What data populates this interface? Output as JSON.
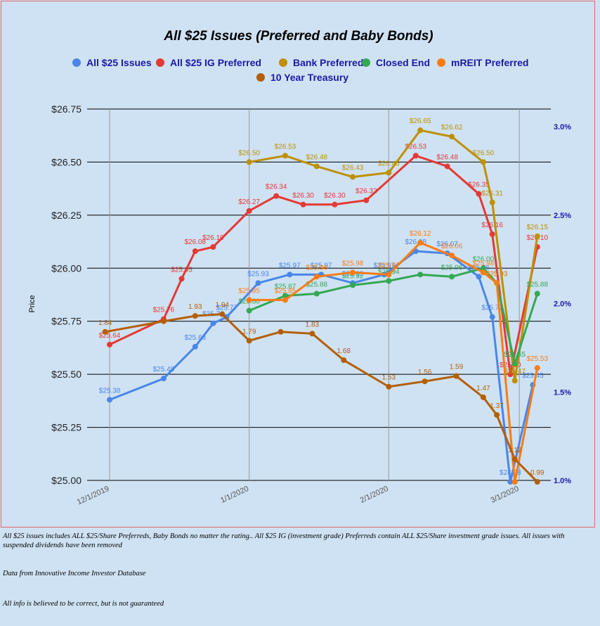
{
  "chart_data": {
    "type": "line",
    "title": "All $25 Issues (Preferred and Baby Bonds)",
    "ylabel": "Price",
    "ylim": [
      25.0,
      26.75
    ],
    "yticks": [
      "$25.00",
      "$25.25",
      "$25.50",
      "$25.75",
      "$26.00",
      "$26.25",
      "$26.50",
      "$26.75"
    ],
    "y2lim": [
      1.0,
      3.1
    ],
    "y2ticks": [
      "1.0%",
      "1.5%",
      "2.0%",
      "2.5%",
      "3.0%"
    ],
    "xticks": [
      "12/1/2019",
      "1/1/2020",
      "2/1/2020",
      "3/1/2020"
    ],
    "legend": "top",
    "grid": true,
    "series": [
      {
        "name": "All $25 Issues",
        "color": "#4a86e8",
        "axis": "left",
        "x": [
          "2019-12-01",
          "2019-12-13",
          "2019-12-20",
          "2019-12-24",
          "2019-12-27",
          "2020-01-03",
          "2020-01-10",
          "2020-01-17",
          "2020-01-24",
          "2020-01-31",
          "2020-02-07",
          "2020-02-14",
          "2020-02-21",
          "2020-02-24",
          "2020-02-28",
          "2020-03-04"
        ],
        "values": [
          25.38,
          25.48,
          25.63,
          25.74,
          25.77,
          25.93,
          25.97,
          25.97,
          25.93,
          25.97,
          26.08,
          26.07,
          25.96,
          25.77,
          24.98,
          25.45
        ],
        "labels": [
          "$25.38",
          "$25.48",
          "$25.63",
          "$25.74",
          "$25.77",
          "$25.93",
          "$25.97",
          "$25.97",
          "$25.93",
          "$25.97",
          "$26.08",
          "$26.07",
          "$25.96",
          "$25.77",
          "$24.98",
          "$25.45"
        ]
      },
      {
        "name": "All $25 IG Preferred",
        "color": "#e53935",
        "axis": "left",
        "x": [
          "2019-12-01",
          "2019-12-13",
          "2019-12-17",
          "2019-12-20",
          "2019-12-24",
          "2020-01-01",
          "2020-01-07",
          "2020-01-13",
          "2020-01-20",
          "2020-01-27",
          "2020-02-07",
          "2020-02-14",
          "2020-02-21",
          "2020-02-24",
          "2020-02-28",
          "2020-03-05"
        ],
        "values": [
          25.64,
          25.76,
          25.95,
          26.08,
          26.1,
          26.27,
          26.34,
          26.3,
          26.3,
          26.32,
          26.53,
          26.48,
          26.35,
          26.16,
          25.5,
          26.1
        ],
        "labels": [
          "$25.64",
          "$25.76",
          "$25.95",
          "$26.08",
          "$26.10",
          "$26.27",
          "$26.34",
          "$26.30",
          "$26.30",
          "$26.32",
          "$26.53",
          "$26.48",
          "$26.35",
          "$26.16",
          "$25.50",
          "$26.10"
        ]
      },
      {
        "name": "Bank Preferred",
        "color": "#bf9000",
        "axis": "left",
        "x": [
          "2020-01-01",
          "2020-01-09",
          "2020-01-16",
          "2020-01-24",
          "2020-02-01",
          "2020-02-08",
          "2020-02-15",
          "2020-02-22",
          "2020-02-24",
          "2020-02-29",
          "2020-03-05"
        ],
        "values": [
          26.5,
          26.53,
          26.48,
          26.43,
          26.45,
          26.65,
          26.62,
          26.5,
          26.31,
          25.47,
          26.15
        ],
        "labels": [
          "$26.50",
          "$26.53",
          "$26.48",
          "$26.43",
          "$26.45",
          "$26.65",
          "$26.62",
          "$26.50",
          "$26.31",
          "$25.47",
          "$26.15"
        ]
      },
      {
        "name": "Closed End",
        "color": "#34a853",
        "axis": "left",
        "x": [
          "2020-01-01",
          "2020-01-09",
          "2020-01-16",
          "2020-01-24",
          "2020-02-01",
          "2020-02-08",
          "2020-02-15",
          "2020-02-22",
          "2020-02-25",
          "2020-02-29",
          "2020-03-05"
        ],
        "values": [
          25.8,
          25.87,
          25.88,
          25.92,
          25.94,
          25.97,
          25.96,
          26.0,
          25.93,
          25.55,
          25.88
        ],
        "labels": [
          "$25.80",
          "$25.87",
          "$25.88",
          "$25.92",
          "$25.94",
          "",
          "$25.96",
          "$26.00",
          "$25.93",
          "$25.55",
          "$25.88"
        ]
      },
      {
        "name": "mREIT Preferred",
        "color": "#fb7c14",
        "axis": "left",
        "x": [
          "2020-01-01",
          "2020-01-09",
          "2020-01-16",
          "2020-01-24",
          "2020-02-01",
          "2020-02-08",
          "2020-02-15",
          "2020-02-22",
          "2020-02-25",
          "2020-02-29",
          "2020-03-05"
        ],
        "values": [
          25.85,
          25.85,
          25.96,
          25.98,
          25.97,
          26.12,
          26.06,
          25.98,
          25.93,
          24.97,
          25.53
        ],
        "labels": [
          "$25.85",
          "$25.85",
          "$25.96",
          "$25.98",
          "$25.97",
          "$26.12",
          "$26.06",
          "$25.98",
          "$25.93",
          "",
          "$25.53"
        ]
      },
      {
        "name": "10 Year Treasury",
        "color": "#b45f06",
        "axis": "right",
        "x": [
          "2019-11-30",
          "2019-12-13",
          "2019-12-20",
          "2019-12-26",
          "2020-01-01",
          "2020-01-08",
          "2020-01-15",
          "2020-01-22",
          "2020-02-01",
          "2020-02-09",
          "2020-02-16",
          "2020-02-22",
          "2020-02-25",
          "2020-02-29",
          "2020-03-05"
        ],
        "values": [
          1.84,
          1.9,
          1.93,
          1.94,
          1.79,
          1.84,
          1.83,
          1.68,
          1.53,
          1.56,
          1.59,
          1.47,
          1.37,
          1.12,
          0.99
        ],
        "labels": [
          "1.84",
          "",
          "1.93",
          "1.94",
          "1.79",
          "",
          "1.83",
          "1.68",
          "1.53",
          "1.56",
          "1.59",
          "1.47",
          "1.37",
          "1.12",
          "0.99"
        ]
      }
    ]
  },
  "footer": {
    "note1": "All $25 issues includes ALL $25/Share Preferreds, Baby Bonds no matter the rating..  All $25 IG (investment grade) Preferreds contain ALL $25/Share investment grade issues.  All issues with suspended dividends have been removed",
    "note2": "Data from Innovative Income Investor Database",
    "note3": "All info is believed to be correct, but is not guaranteed"
  }
}
